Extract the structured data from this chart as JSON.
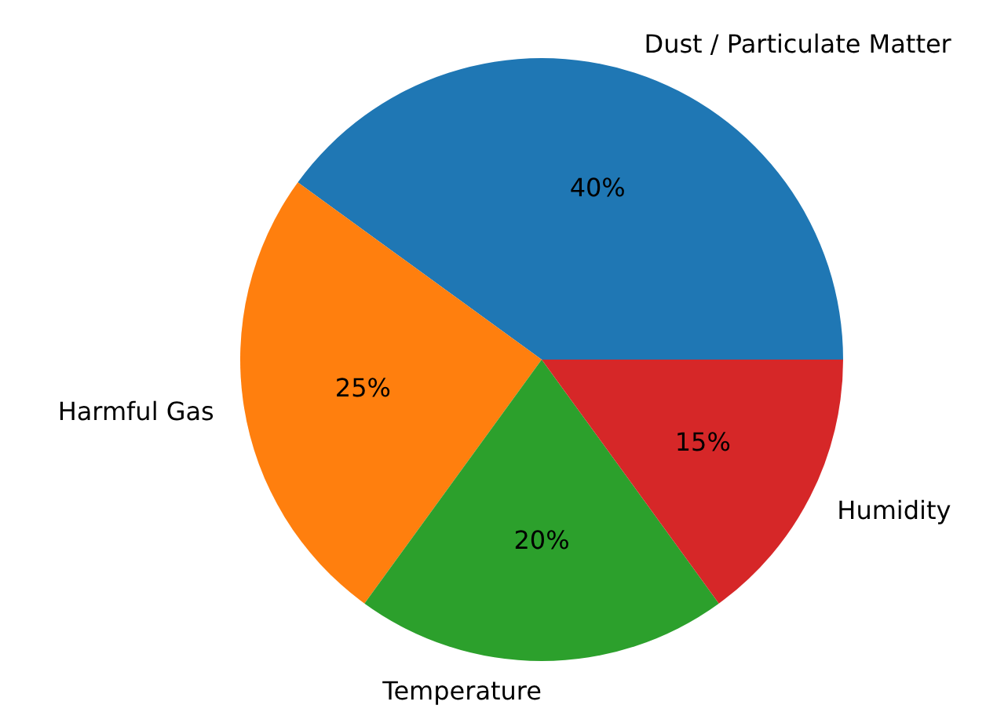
{
  "chart_data": {
    "type": "pie",
    "categories": [
      "Dust / Particulate Matter",
      "Harmful Gas",
      "Temperature",
      "Humidity"
    ],
    "values": [
      40,
      25,
      20,
      15
    ],
    "colors": [
      "#1f77b4",
      "#ff7f0e",
      "#2ca02c",
      "#d62728"
    ],
    "value_labels": [
      "40%",
      "25%",
      "20%",
      "15%"
    ]
  }
}
